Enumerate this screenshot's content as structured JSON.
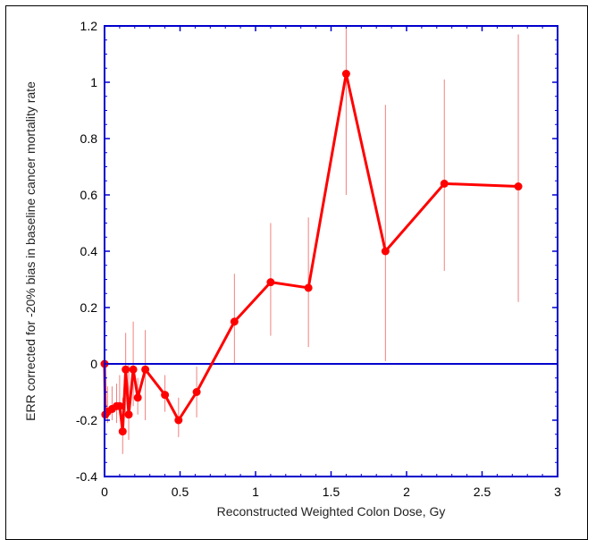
{
  "chart_data": {
    "type": "line",
    "title": "",
    "xlabel": "Reconstructed Weighted Colon Dose, Gy",
    "ylabel": "ERR corrected for -20% bias in baseline cancer mortality rate",
    "xlim": [
      0,
      3
    ],
    "ylim": [
      -0.4,
      1.2
    ],
    "x_ticks": [
      "0",
      "0.5",
      "1",
      "1.5",
      "2",
      "2.5",
      "3"
    ],
    "y_ticks": [
      "-0.4",
      "-0.2",
      "0",
      "0.2",
      "0.4",
      "0.6",
      "0.8",
      "1",
      "1.2"
    ],
    "reference_line_y": 0,
    "grid": false,
    "series": [
      {
        "color": "#ff0000",
        "x": [
          0,
          0.005,
          0.02,
          0.05,
          0.08,
          0.1,
          0.12,
          0.14,
          0.16,
          0.19,
          0.22,
          0.27,
          0.4,
          0.49,
          0.61,
          0.86,
          1.1,
          1.35,
          1.6,
          1.86,
          2.25,
          2.74
        ],
        "y": [
          0,
          -0.18,
          -0.17,
          -0.16,
          -0.15,
          -0.15,
          -0.24,
          -0.02,
          -0.18,
          -0.02,
          -0.12,
          -0.02,
          -0.11,
          -0.2,
          -0.1,
          0.15,
          0.29,
          0.27,
          1.03,
          0.4,
          0.64,
          0.63
        ],
        "y_err_low": [
          -0.15,
          -0.2,
          -0.21,
          -0.2,
          -0.21,
          -0.18,
          -0.32,
          -0.18,
          -0.27,
          -0.15,
          -0.18,
          -0.2,
          -0.17,
          -0.26,
          -0.19,
          0.0,
          0.1,
          0.06,
          0.6,
          0.01,
          0.33,
          0.22
        ],
        "y_err_high": [
          0.0,
          -0.12,
          -0.08,
          -0.08,
          -0.07,
          -0.04,
          -0.12,
          0.11,
          0.0,
          0.15,
          -0.05,
          0.12,
          -0.04,
          -0.12,
          -0.01,
          0.32,
          0.5,
          0.52,
          1.2,
          0.92,
          1.01,
          1.17
        ]
      }
    ]
  }
}
